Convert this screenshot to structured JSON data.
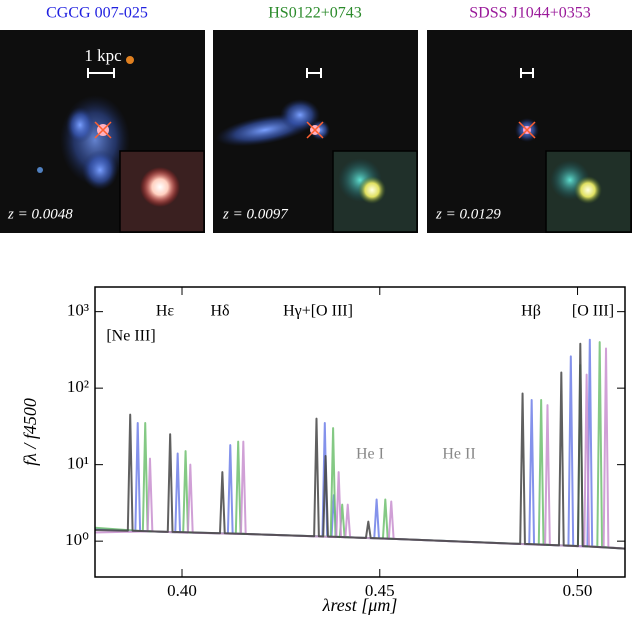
{
  "panels": [
    {
      "title": "CGCG 007-025",
      "color": "#2020e0",
      "scale_label": "1 kpc",
      "redshift_label": "z = 0.0048"
    },
    {
      "title": "HS0122+0743",
      "color": "#2a8a2a",
      "redshift_label": "z = 0.0097"
    },
    {
      "title": "SDSS J1044+0353",
      "color": "#9a1a9a",
      "redshift_label": "z = 0.0129"
    }
  ],
  "chart_data": {
    "type": "line",
    "xlabel": "λrest [μm]",
    "ylabel": "fλ / f4500",
    "log_y": true,
    "xlim": [
      0.378,
      0.512
    ],
    "ylim": [
      0.34,
      2100
    ],
    "xticks": [
      {
        "value": 0.4,
        "label": "0.40"
      },
      {
        "value": 0.45,
        "label": "0.45"
      },
      {
        "value": 0.5,
        "label": "0.50"
      }
    ],
    "yticks": [
      {
        "value": 1,
        "label": "10⁰"
      },
      {
        "value": 10,
        "label": "10¹"
      },
      {
        "value": 100,
        "label": "10²"
      },
      {
        "value": 1000,
        "label": "10³"
      }
    ],
    "annotations": [
      "Hε",
      "Hδ",
      "Hγ+[O III]",
      "Hβ",
      "[O III]",
      "[Ne III]",
      "He I",
      "He II"
    ],
    "series": [
      {
        "color": "#6f7fe8",
        "x": [
          0.378,
          0.3882,
          0.3888,
          0.3894,
          0.3983,
          0.3989,
          0.3995,
          0.4116,
          0.4122,
          0.4128,
          0.4355,
          0.4361,
          0.4367,
          0.4378,
          0.4384,
          0.439,
          0.4486,
          0.4492,
          0.4498,
          0.4878,
          0.4884,
          0.489,
          0.4977,
          0.4983,
          0.4989,
          0.5025,
          0.5031,
          0.5037,
          0.512
        ],
        "values": [
          1.45,
          1.36,
          35,
          1.36,
          1.31,
          14,
          1.31,
          1.26,
          18,
          1.26,
          1.15,
          35,
          1.15,
          1.14,
          4,
          1.14,
          1.09,
          3.5,
          1.09,
          0.91,
          70,
          0.91,
          0.87,
          260,
          0.87,
          0.85,
          430,
          0.85,
          0.8
        ]
      },
      {
        "color": "#6fbf6f",
        "x": [
          0.378,
          0.3901,
          0.3907,
          0.3913,
          0.4003,
          0.4009,
          0.4015,
          0.4136,
          0.4142,
          0.4148,
          0.4376,
          0.4382,
          0.4388,
          0.4399,
          0.4405,
          0.4411,
          0.4508,
          0.4514,
          0.452,
          0.4902,
          0.4908,
          0.4914,
          0.5001,
          0.5007,
          0.5013,
          0.505,
          0.5056,
          0.5062,
          0.512
        ],
        "values": [
          1.5,
          1.35,
          35,
          1.35,
          1.3,
          15,
          1.3,
          1.25,
          20,
          1.25,
          1.14,
          30,
          1.14,
          1.13,
          3,
          1.13,
          1.08,
          3.5,
          1.08,
          0.9,
          70,
          0.9,
          0.86,
          200,
          0.86,
          0.84,
          400,
          0.84,
          0.8
        ]
      },
      {
        "color": "#c88fcf",
        "x": [
          0.378,
          0.3913,
          0.3919,
          0.3925,
          0.4015,
          0.4021,
          0.4027,
          0.4149,
          0.4155,
          0.4161,
          0.439,
          0.4396,
          0.4402,
          0.4413,
          0.4419,
          0.4425,
          0.4523,
          0.4529,
          0.4535,
          0.4918,
          0.4924,
          0.493,
          0.5017,
          0.5023,
          0.5029,
          0.5066,
          0.5072,
          0.5078,
          0.512
        ],
        "values": [
          1.3,
          1.34,
          12,
          1.34,
          1.29,
          10,
          1.29,
          1.24,
          20,
          1.24,
          1.13,
          8,
          1.13,
          1.12,
          3,
          1.12,
          1.07,
          3.3,
          1.07,
          0.89,
          60,
          0.89,
          0.85,
          150,
          0.85,
          0.83,
          330,
          0.83,
          0.8
        ]
      },
      {
        "color": "#444444",
        "x": [
          0.378,
          0.3863,
          0.3869,
          0.3875,
          0.3964,
          0.397,
          0.3976,
          0.4096,
          0.4102,
          0.4108,
          0.4334,
          0.434,
          0.4346,
          0.4357,
          0.4363,
          0.4369,
          0.4465,
          0.4471,
          0.4477,
          0.4855,
          0.4861,
          0.4867,
          0.4953,
          0.4959,
          0.4965,
          0.5001,
          0.5007,
          0.5013,
          0.512
        ],
        "values": [
          1.4,
          1.37,
          45,
          1.37,
          1.32,
          25,
          1.32,
          1.27,
          8,
          1.27,
          1.16,
          40,
          1.16,
          1.15,
          13,
          1.15,
          1.1,
          1.8,
          1.1,
          0.92,
          85,
          0.92,
          0.88,
          160,
          0.88,
          0.86,
          380,
          0.86,
          0.8
        ]
      }
    ]
  }
}
